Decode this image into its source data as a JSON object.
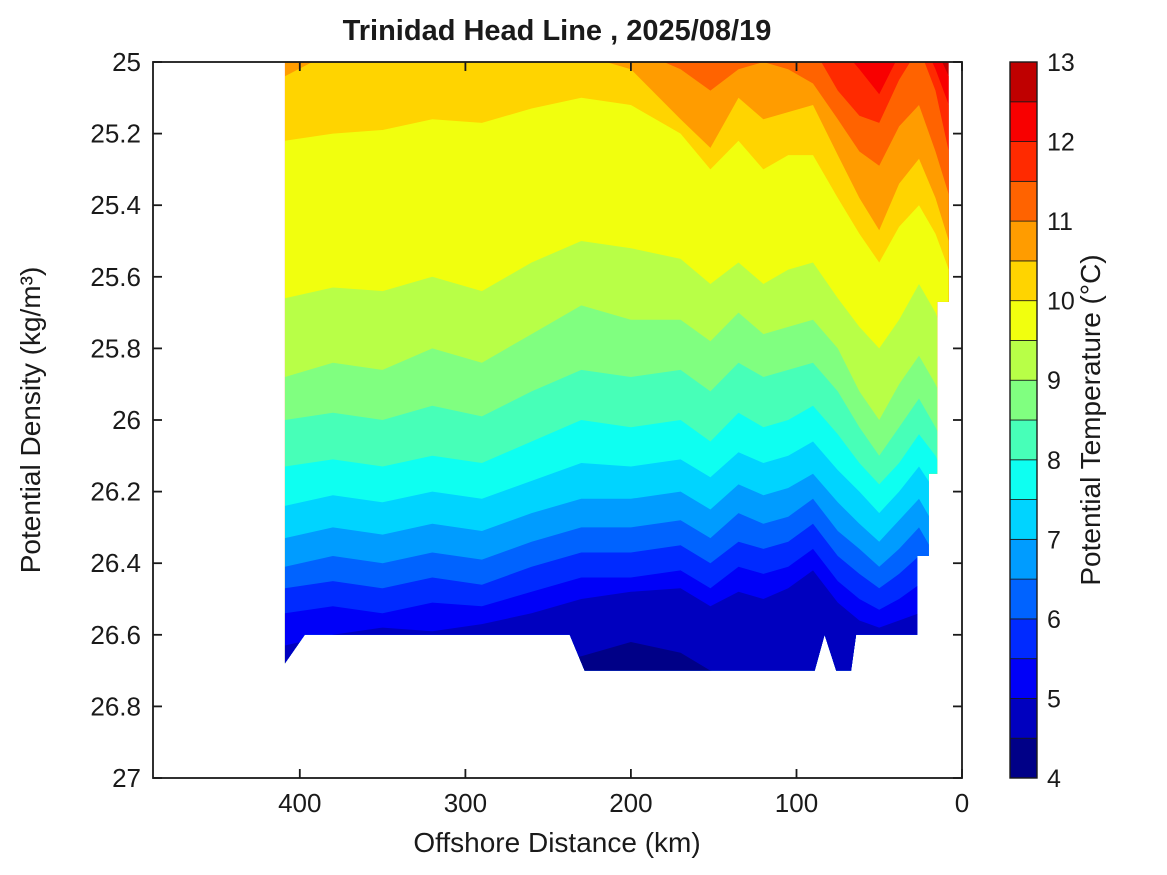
{
  "figure": {
    "title": "Trinidad Head Line , 2025/08/19"
  },
  "axes": {
    "xlabel": "Offshore Distance (km)",
    "ylabel": "Potential Density (kg/m³)",
    "x_ticks": [
      400,
      300,
      200,
      100,
      0
    ],
    "x_tick_labels": [
      "400",
      "300",
      "200",
      "100",
      "0"
    ],
    "y_ticks": [
      25,
      25.2,
      25.4,
      25.6,
      25.8,
      26,
      26.2,
      26.4,
      26.6,
      26.8,
      27
    ],
    "y_tick_labels": [
      "25",
      "25.2",
      "25.4",
      "25.6",
      "25.8",
      "26",
      "26.2",
      "26.4",
      "26.6",
      "26.8",
      "27"
    ],
    "xlim_km": [
      488.7,
      0
    ],
    "ylim": [
      25,
      27
    ],
    "x_axis_reversed": true
  },
  "colorbar": {
    "label": "Potential Temperature (°C)",
    "tick_values": [
      4,
      5,
      6,
      7,
      8,
      9,
      10,
      11,
      12,
      13
    ],
    "level_min": 4,
    "level_max": 13,
    "level_step": 0.5,
    "colors_bottom_to_top": [
      "#000087",
      "#0000BF",
      "#0000F8",
      "#002AFF",
      "#0063FF",
      "#009CFF",
      "#00D4FF",
      "#0EFFF1",
      "#47FFB8",
      "#80FF80",
      "#B8FF47",
      "#F1FF0E",
      "#FFD400",
      "#FF9C00",
      "#FF6300",
      "#FF2A00",
      "#F80000",
      "#BF0000"
    ]
  },
  "chart_data": {
    "type": "filled_contour",
    "x_name": "offshore_distance_km",
    "y_name": "potential_density_kg_m3",
    "z_name": "potential_temperature_C",
    "contour_interval_C": 0.5,
    "stations_km": [
      409,
      380,
      350,
      320,
      290,
      260,
      230,
      200,
      170,
      152,
      135,
      120,
      105,
      90,
      75,
      62,
      50,
      38,
      26,
      16,
      8
    ],
    "isotherms": [
      {
        "temp_C": 12.5,
        "density": [
          24.9,
          24.9,
          24.9,
          24.9,
          24.9,
          24.9,
          24.9,
          24.9,
          24.9,
          24.9,
          24.9,
          24.9,
          24.9,
          24.9,
          24.9,
          24.9,
          24.9,
          24.9,
          24.9,
          24.96,
          25.04
        ]
      },
      {
        "temp_C": 12.0,
        "density": [
          24.9,
          24.9,
          24.9,
          24.9,
          24.9,
          24.9,
          24.9,
          24.9,
          24.9,
          24.9,
          24.9,
          24.9,
          24.9,
          24.92,
          24.95,
          25.02,
          25.09,
          24.98,
          24.92,
          25.02,
          25.12
        ]
      },
      {
        "temp_C": 11.5,
        "density": [
          24.9,
          24.9,
          24.9,
          24.9,
          24.9,
          24.9,
          24.9,
          24.9,
          24.9,
          24.9,
          24.9,
          24.9,
          24.92,
          24.96,
          25.08,
          25.15,
          25.17,
          25.05,
          24.96,
          25.08,
          25.25
        ]
      },
      {
        "temp_C": 11.0,
        "density": [
          24.9,
          24.9,
          24.9,
          24.9,
          24.9,
          24.9,
          24.92,
          24.96,
          25.02,
          25.08,
          25.02,
          25.0,
          25.02,
          25.06,
          25.16,
          25.25,
          25.29,
          25.18,
          25.12,
          25.25,
          25.37
        ]
      },
      {
        "temp_C": 10.5,
        "density": [
          25.04,
          24.97,
          24.92,
          24.9,
          24.9,
          24.94,
          24.98,
          25.02,
          25.16,
          25.24,
          25.1,
          25.16,
          25.14,
          25.12,
          25.26,
          25.38,
          25.47,
          25.34,
          25.27,
          25.38,
          25.5
        ]
      },
      {
        "temp_C": 10.0,
        "density": [
          25.22,
          25.2,
          25.19,
          25.16,
          25.17,
          25.13,
          25.1,
          25.12,
          25.2,
          25.3,
          25.22,
          25.3,
          25.26,
          25.26,
          25.38,
          25.48,
          25.56,
          25.46,
          25.4,
          25.48,
          25.58
        ]
      },
      {
        "temp_C": 9.5,
        "density": [
          25.66,
          25.63,
          25.64,
          25.6,
          25.64,
          25.56,
          25.5,
          25.52,
          25.55,
          25.62,
          25.56,
          25.62,
          25.58,
          25.56,
          25.66,
          25.74,
          25.8,
          25.72,
          25.62,
          25.7,
          25.8
        ]
      },
      {
        "temp_C": 9.0,
        "density": [
          25.88,
          25.84,
          25.86,
          25.8,
          25.84,
          25.76,
          25.68,
          25.72,
          25.72,
          25.78,
          25.7,
          25.76,
          25.74,
          25.72,
          25.8,
          25.92,
          26.0,
          25.9,
          25.82,
          25.9,
          25.98
        ]
      },
      {
        "temp_C": 8.5,
        "density": [
          26.0,
          25.98,
          26.0,
          25.96,
          25.99,
          25.92,
          25.86,
          25.88,
          25.86,
          25.92,
          25.84,
          25.88,
          25.86,
          25.84,
          25.92,
          26.02,
          26.1,
          26.02,
          25.94,
          26.02,
          26.1
        ]
      },
      {
        "temp_C": 8.0,
        "density": [
          26.13,
          26.11,
          26.13,
          26.1,
          26.12,
          26.06,
          26.0,
          26.02,
          26.0,
          26.06,
          25.98,
          26.02,
          26.0,
          25.96,
          26.04,
          26.12,
          26.18,
          26.12,
          26.04,
          26.1,
          26.18
        ]
      },
      {
        "temp_C": 7.5,
        "density": [
          26.24,
          26.21,
          26.23,
          26.2,
          26.22,
          26.17,
          26.12,
          26.13,
          26.11,
          26.16,
          26.09,
          26.12,
          26.1,
          26.06,
          26.14,
          26.2,
          26.26,
          26.2,
          26.13,
          26.2,
          26.28
        ]
      },
      {
        "temp_C": 7.0,
        "density": [
          26.33,
          26.3,
          26.32,
          26.29,
          26.31,
          26.26,
          26.22,
          26.22,
          26.2,
          26.25,
          26.18,
          26.21,
          26.19,
          26.15,
          26.23,
          26.29,
          26.34,
          26.28,
          26.22,
          26.3,
          26.36
        ]
      },
      {
        "temp_C": 6.5,
        "density": [
          26.41,
          26.38,
          26.4,
          26.37,
          26.39,
          26.34,
          26.3,
          26.3,
          26.28,
          26.33,
          26.26,
          26.29,
          26.27,
          26.22,
          26.31,
          26.36,
          26.41,
          26.36,
          26.3,
          26.38,
          26.44
        ]
      },
      {
        "temp_C": 6.0,
        "density": [
          26.47,
          26.45,
          26.47,
          26.44,
          26.46,
          26.41,
          26.37,
          26.37,
          26.35,
          26.4,
          26.34,
          26.36,
          26.34,
          26.29,
          26.38,
          26.43,
          26.47,
          26.43,
          26.38,
          26.46,
          26.52
        ]
      },
      {
        "temp_C": 5.5,
        "density": [
          26.54,
          26.52,
          26.54,
          26.51,
          26.52,
          26.48,
          26.44,
          26.44,
          26.42,
          26.47,
          26.41,
          26.43,
          26.41,
          26.36,
          26.45,
          26.5,
          26.53,
          26.5,
          26.46,
          26.54,
          26.6
        ]
      },
      {
        "temp_C": 5.0,
        "density": [
          26.63,
          26.6,
          26.58,
          26.59,
          26.57,
          26.54,
          26.5,
          26.48,
          26.47,
          26.52,
          26.48,
          26.5,
          26.47,
          26.42,
          26.51,
          26.56,
          26.58,
          26.56,
          26.54,
          26.62,
          26.68
        ]
      },
      {
        "temp_C": 4.5,
        "density": [
          26.72,
          26.72,
          26.7,
          26.71,
          26.7,
          26.68,
          26.66,
          26.62,
          26.65,
          26.7,
          26.72,
          26.72,
          26.72,
          26.7,
          26.73,
          26.72,
          26.72,
          26.72,
          26.72,
          26.74,
          26.76
        ]
      }
    ],
    "data_region_polygon_km_density": [
      [
        409,
        25.0
      ],
      [
        8,
        25.0
      ],
      [
        8,
        25.67
      ],
      [
        15,
        25.67
      ],
      [
        15,
        26.15
      ],
      [
        20,
        26.15
      ],
      [
        20,
        26.38
      ],
      [
        27,
        26.38
      ],
      [
        27,
        26.6
      ],
      [
        64,
        26.6
      ],
      [
        67,
        26.7
      ],
      [
        76,
        26.7
      ],
      [
        83,
        26.6
      ],
      [
        89,
        26.7
      ],
      [
        228,
        26.7
      ],
      [
        237,
        26.6
      ],
      [
        397,
        26.6
      ],
      [
        409,
        26.68
      ]
    ]
  }
}
